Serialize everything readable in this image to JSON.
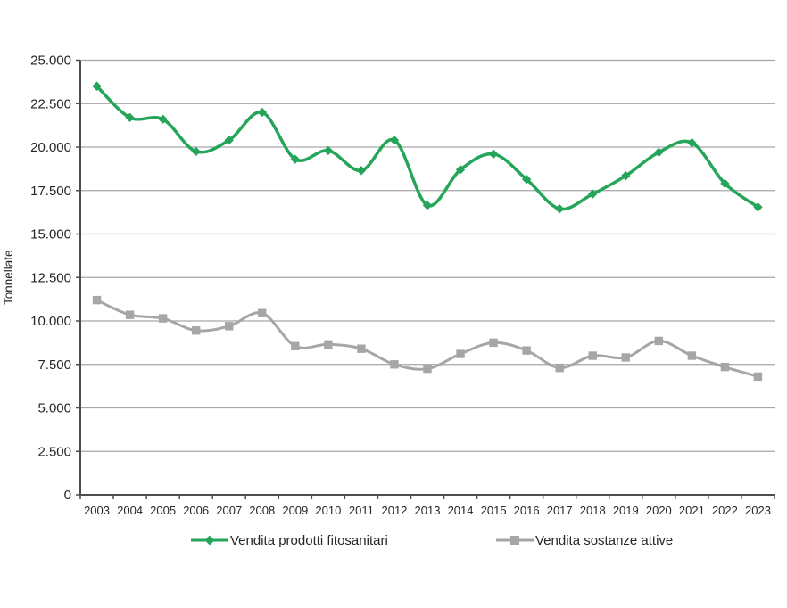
{
  "colors": {
    "series_green": "#24a55a",
    "series_gray": "#a6a6a6",
    "gridline": "#a6a6a6",
    "axis": "#4d4d4d",
    "text": "#262626"
  },
  "chart_data": {
    "type": "line",
    "title": "",
    "xlabel": "",
    "ylabel": "Tonnellate",
    "ylim": [
      0,
      25000
    ],
    "ytick_step": 2500,
    "ytick_labels": [
      "0",
      "2.500",
      "5.000",
      "7.500",
      "10.000",
      "12.500",
      "15.000",
      "17.500",
      "20.000",
      "22.500",
      "25.000"
    ],
    "grid": true,
    "legend_position": "bottom",
    "line_style": "smooth",
    "categories": [
      "2003",
      "2004",
      "2005",
      "2006",
      "2007",
      "2008",
      "2009",
      "2010",
      "2011",
      "2012",
      "2013",
      "2014",
      "2015",
      "2016",
      "2017",
      "2018",
      "2019",
      "2020",
      "2021",
      "2022",
      "2023"
    ],
    "series": [
      {
        "name": "Vendita prodotti fitosanitari",
        "color": "#24a55a",
        "marker": "diamond",
        "values": [
          23500,
          21700,
          21600,
          19750,
          20400,
          22000,
          19300,
          19800,
          18650,
          20400,
          16650,
          18700,
          19600,
          18150,
          16450,
          17300,
          18350,
          19700,
          20250,
          17900,
          16550
        ]
      },
      {
        "name": "Vendita sostanze attive",
        "color": "#a6a6a6",
        "marker": "square",
        "values": [
          11200,
          10350,
          10150,
          9450,
          9700,
          10450,
          8550,
          8650,
          8400,
          7500,
          7250,
          8100,
          8750,
          8300,
          7300,
          8000,
          7900,
          8850,
          8000,
          7350,
          6800
        ]
      }
    ]
  }
}
